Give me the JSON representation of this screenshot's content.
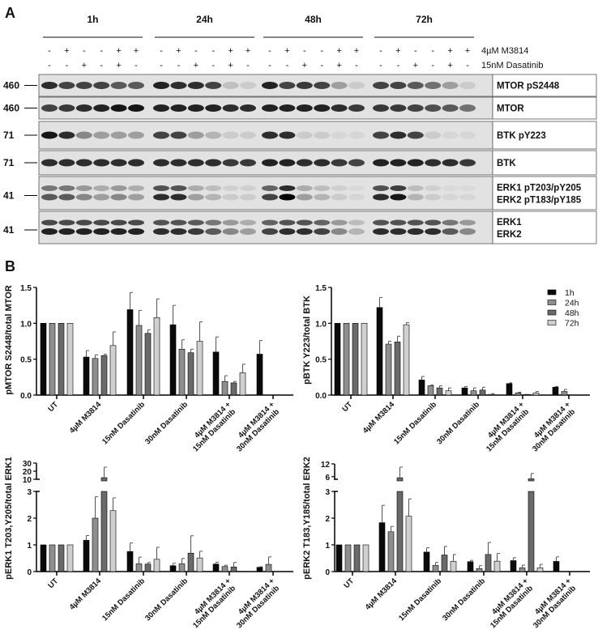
{
  "panel_labels": {
    "a": "A",
    "b": "B"
  },
  "blot": {
    "timepoints": [
      "1h",
      "24h",
      "48h",
      "72h"
    ],
    "treatments": [
      {
        "label": "4µM M3814",
        "pattern": [
          "-",
          "+",
          "-",
          "-",
          "+",
          "+"
        ]
      },
      {
        "label": "15nM Dasatinib",
        "pattern": [
          "-",
          "-",
          "+",
          "-",
          "+",
          "-"
        ]
      },
      {
        "label": "30nM Dasatinib",
        "pattern": [
          "-",
          "-",
          "-",
          "+",
          "-",
          "+"
        ]
      }
    ],
    "rows": [
      {
        "label": [
          "MTOR pS2448"
        ],
        "mw": "460",
        "bands": 1,
        "intensity": [
          0.8,
          0.7,
          0.7,
          0.7,
          0.6,
          0.6,
          0.85,
          0.8,
          0.8,
          0.7,
          0.15,
          0.1,
          0.85,
          0.7,
          0.75,
          0.7,
          0.3,
          0.1,
          0.7,
          0.7,
          0.6,
          0.5,
          0.3,
          0.1
        ]
      },
      {
        "label": [
          "MTOR"
        ],
        "mw": "460",
        "bands": 1,
        "intensity": [
          0.7,
          0.75,
          0.8,
          0.85,
          0.9,
          0.9,
          0.85,
          0.85,
          0.85,
          0.85,
          0.8,
          0.8,
          0.85,
          0.85,
          0.85,
          0.85,
          0.8,
          0.75,
          0.75,
          0.75,
          0.7,
          0.65,
          0.6,
          0.5
        ]
      },
      {
        "label": [
          "BTK pY223"
        ],
        "mw": "71",
        "bands": 1,
        "intensity": [
          0.9,
          0.8,
          0.4,
          0.3,
          0.3,
          0.3,
          0.7,
          0.7,
          0.3,
          0.2,
          0.1,
          0.1,
          0.8,
          0.8,
          0.1,
          0.1,
          0.05,
          0.05,
          0.7,
          0.8,
          0.7,
          0.1,
          0.05,
          0.05
        ]
      },
      {
        "label": [
          "BTK"
        ],
        "mw": "71",
        "bands": 1,
        "intensity": [
          0.8,
          0.8,
          0.8,
          0.8,
          0.8,
          0.8,
          0.8,
          0.8,
          0.8,
          0.8,
          0.75,
          0.75,
          0.85,
          0.85,
          0.8,
          0.8,
          0.75,
          0.7,
          0.85,
          0.85,
          0.85,
          0.8,
          0.8,
          0.75
        ]
      },
      {
        "label": [
          "ERK1 pT203/pY205",
          "ERK2 pT183/pY185"
        ],
        "mw": "41",
        "bands": 2,
        "intensity": [
          0.6,
          0.6,
          0.4,
          0.3,
          0.4,
          0.3,
          0.8,
          0.8,
          0.3,
          0.2,
          0.1,
          0.1,
          0.7,
          1.0,
          0.3,
          0.2,
          0.1,
          0.05,
          0.8,
          0.9,
          0.2,
          0.1,
          0.05,
          0.05
        ]
      },
      {
        "label": [
          "ERK1",
          "ERK2"
        ],
        "mw": "41",
        "bands": 2,
        "intensity": [
          0.85,
          0.85,
          0.85,
          0.85,
          0.85,
          0.85,
          0.8,
          0.8,
          0.75,
          0.6,
          0.4,
          0.3,
          0.7,
          0.8,
          0.8,
          0.7,
          0.4,
          0.2,
          0.8,
          0.8,
          0.8,
          0.8,
          0.6,
          0.4
        ]
      }
    ]
  },
  "chart_data": [
    {
      "type": "bar",
      "ylabel": "pMTOR S2448/total MTOR",
      "ylim": [
        0,
        1.5
      ],
      "yticks": [
        "0.0",
        "0.5",
        "1.0",
        "1.5"
      ],
      "categories": [
        [
          "UT"
        ],
        [
          "4µM M3814"
        ],
        [
          "15nM Dasatinib"
        ],
        [
          "30nM Dasatinib"
        ],
        [
          "4µM M3814 +",
          "15nM Dasatinib"
        ],
        [
          "4µM M3814 +",
          "30nM Dasatinib"
        ]
      ],
      "series": [
        {
          "name": "1h",
          "values": [
            1,
            0.53,
            1.19,
            0.98,
            0.6,
            0.57
          ],
          "errors": [
            0,
            0.09,
            0.24,
            0.27,
            0.21,
            0.19
          ]
        },
        {
          "name": "24h",
          "values": [
            1,
            0.51,
            0.97,
            0.64,
            0.19,
            null
          ],
          "errors": [
            0,
            0.05,
            0.21,
            0.13,
            0.08,
            null
          ]
        },
        {
          "name": "48h",
          "values": [
            1,
            0.55,
            0.86,
            0.59,
            0.17,
            null
          ],
          "errors": [
            0,
            0.02,
            0.05,
            0.05,
            0.02,
            null
          ]
        },
        {
          "name": "72h",
          "values": [
            1,
            0.69,
            1.08,
            0.75,
            0.31,
            null
          ],
          "errors": [
            0,
            0.19,
            0.26,
            0.27,
            0.12,
            null
          ]
        }
      ]
    },
    {
      "type": "bar",
      "ylabel": "pBTK Y223/total BTK",
      "ylim": [
        0,
        1.5
      ],
      "yticks": [
        "0.0",
        "0.5",
        "1.0",
        "1.5"
      ],
      "legend": "top-right",
      "categories": [
        [
          "UT"
        ],
        [
          "4µM M3814"
        ],
        [
          "15nM Dasatinib"
        ],
        [
          "30nM Dasatinib"
        ],
        [
          "4µM M3814 +",
          "15nM Dasatinib"
        ],
        [
          "4µM M3814 +",
          "30nM Dasatinib"
        ]
      ],
      "series": [
        {
          "name": "1h",
          "values": [
            1,
            1.22,
            0.21,
            0.1,
            0.16,
            0.11
          ],
          "errors": [
            0,
            0.14,
            0.05,
            0.02,
            0.01,
            0.01
          ]
        },
        {
          "name": "24h",
          "values": [
            1,
            0.71,
            0.13,
            0.06,
            0.03,
            0.05
          ],
          "errors": [
            0,
            0.04,
            0.01,
            0.04,
            0.01,
            0.03
          ]
        },
        {
          "name": "48h",
          "values": [
            1,
            0.74,
            0.1,
            0.07,
            0.01,
            null
          ],
          "errors": [
            0,
            0.08,
            0.03,
            0.04,
            0.0,
            null
          ]
        },
        {
          "name": "72h",
          "values": [
            1,
            0.98,
            0.06,
            0.01,
            0.03,
            null
          ],
          "errors": [
            0,
            0.03,
            0.04,
            0.01,
            0.02,
            null
          ]
        }
      ]
    },
    {
      "type": "bar",
      "ylabel": "pERK1 T203,Y205/total ERK1",
      "ylim": [
        0,
        30
      ],
      "axis_break": [
        3,
        10
      ],
      "yticks": [
        "0",
        "1",
        "2",
        "3",
        "10",
        "20",
        "30"
      ],
      "categories": [
        [
          "UT"
        ],
        [
          "4µM M3814"
        ],
        [
          "15nM Dasatinib"
        ],
        [
          "30nM Dasatinib"
        ],
        [
          "4µM M3814 +",
          "15nM Dasatinib"
        ],
        [
          "4µM M3814 +",
          "30nM Dasatinib"
        ]
      ],
      "series": [
        {
          "name": "1h",
          "values": [
            1,
            1.17,
            0.75,
            0.22,
            0.28,
            0.16
          ],
          "errors": [
            0,
            0.18,
            0.32,
            0.09,
            0.07,
            0.02
          ]
        },
        {
          "name": "24h",
          "values": [
            1,
            2.0,
            0.29,
            0.29,
            0.19,
            0.27
          ],
          "errors": [
            0,
            0.8,
            0.25,
            0.2,
            0.05,
            0.28
          ]
        },
        {
          "name": "48h",
          "values": [
            1,
            12,
            0.28,
            0.69,
            0.17,
            null
          ],
          "errors": [
            0,
            13,
            0.06,
            0.65,
            0.17,
            null
          ]
        },
        {
          "name": "72h",
          "values": [
            1,
            2.28,
            0.46,
            0.51,
            null,
            null
          ],
          "errors": [
            0,
            0.48,
            0.45,
            0.25,
            null,
            null
          ]
        }
      ]
    },
    {
      "type": "bar",
      "ylabel": "pERK2 T183,Y185/total ERK2",
      "ylim": [
        0,
        12
      ],
      "axis_break": [
        3,
        4
      ],
      "yticks": [
        "0",
        "1",
        "2",
        "3",
        "6",
        "12"
      ],
      "categories": [
        [
          "UT"
        ],
        [
          "4µM M3814"
        ],
        [
          "15nM Dasatinib"
        ],
        [
          "30nM Dasatinib"
        ],
        [
          "4µM M3814 +",
          "15nM Dasatinib"
        ],
        [
          "4µM M3814 +",
          "30nM Dasatinib"
        ]
      ],
      "series": [
        {
          "name": "1h",
          "values": [
            1,
            1.83,
            0.73,
            0.37,
            0.41,
            0.38
          ],
          "errors": [
            0,
            0.65,
            0.16,
            0.05,
            0.11,
            0.17
          ]
        },
        {
          "name": "24h",
          "values": [
            1,
            1.49,
            0.23,
            0.11,
            0.14,
            null
          ],
          "errors": [
            0,
            0.2,
            0.11,
            0.11,
            0.1,
            null
          ]
        },
        {
          "name": "48h",
          "values": [
            1,
            5.5,
            0.62,
            0.64,
            5.0,
            null
          ],
          "errors": [
            0,
            5,
            0.32,
            0.45,
            2.5,
            null
          ]
        },
        {
          "name": "72h",
          "values": [
            1,
            2.07,
            0.38,
            0.39,
            0.14,
            null
          ],
          "errors": [
            0,
            0.65,
            0.26,
            0.29,
            0.13,
            null
          ]
        }
      ]
    }
  ],
  "colors": {
    "1h": "#0a0a0a",
    "24h": "#8f8f8f",
    "48h": "#6a6a6a",
    "72h": "#d0d0d0"
  }
}
